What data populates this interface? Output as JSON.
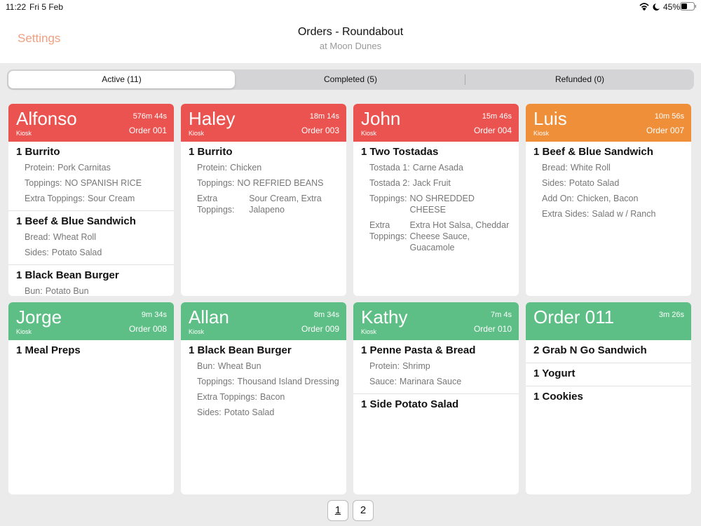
{
  "status_bar": {
    "time": "11:22",
    "date": "Fri 5 Feb",
    "battery": "45%"
  },
  "header": {
    "settings": "Settings",
    "title": "Orders - Roundabout",
    "subtitle": "at Moon Dunes"
  },
  "tabs": [
    "Active (11)",
    "Completed (5)",
    "Refunded (0)"
  ],
  "orders": [
    {
      "name": "Alfonso",
      "time": "576m 44s",
      "source": "Kiosk",
      "order_no": "Order 001",
      "color": "#eb5350",
      "items": [
        {
          "title": "1 Burrito",
          "options": [
            {
              "label": "Protein:",
              "value": "Pork Carnitas"
            },
            {
              "label": "Toppings:",
              "value": "NO SPANISH RICE"
            },
            {
              "label": "Extra Toppings:",
              "value": "Sour Cream"
            }
          ]
        },
        {
          "title": "1 Beef & Blue Sandwich",
          "options": [
            {
              "label": "Bread:",
              "value": "Wheat Roll"
            },
            {
              "label": "Sides:",
              "value": "Potato Salad"
            }
          ]
        },
        {
          "title": "1 Black Bean Burger",
          "options": [
            {
              "label": "Bun:",
              "value": "Potato Bun"
            }
          ]
        }
      ]
    },
    {
      "name": "Haley",
      "time": "18m 14s",
      "source": "Kiosk",
      "order_no": "Order 003",
      "color": "#eb5350",
      "items": [
        {
          "title": "1 Burrito",
          "options": [
            {
              "label": "Protein:",
              "value": "Chicken"
            },
            {
              "label": "Toppings:",
              "value": "NO REFRIED BEANS"
            },
            {
              "label": "Extra Toppings:",
              "value": "Sour Cream, Extra Jalapeno"
            }
          ]
        }
      ]
    },
    {
      "name": "John",
      "time": "15m 46s",
      "source": "Kiosk",
      "order_no": "Order 004",
      "color": "#eb5350",
      "items": [
        {
          "title": "1 Two Tostadas",
          "options": [
            {
              "label": "Tostada 1:",
              "value": "Carne Asada"
            },
            {
              "label": "Tostada 2:",
              "value": "Jack Fruit"
            },
            {
              "label": "Toppings:",
              "value": "NO SHREDDED CHEESE"
            },
            {
              "label": "Extra Toppings:",
              "value": "Extra Hot Salsa, Cheddar Cheese Sauce, Guacamole"
            }
          ]
        }
      ]
    },
    {
      "name": "Luis",
      "time": "10m 56s",
      "source": "Kiosk",
      "order_no": "Order 007",
      "color": "#ef8f3a",
      "items": [
        {
          "title": "1 Beef & Blue Sandwich",
          "options": [
            {
              "label": "Bread:",
              "value": "White Roll"
            },
            {
              "label": "Sides:",
              "value": "Potato Salad"
            },
            {
              "label": "Add On:",
              "value": "Chicken, Bacon"
            },
            {
              "label": "Extra Sides:",
              "value": "Salad w / Ranch"
            }
          ]
        }
      ]
    },
    {
      "name": "Jorge",
      "time": "9m 34s",
      "source": "Kiosk",
      "order_no": "Order 008",
      "color": "#5dbf85",
      "items": [
        {
          "title": "1 Meal Preps",
          "options": []
        }
      ]
    },
    {
      "name": "Allan",
      "time": "8m 34s",
      "source": "Kiosk",
      "order_no": "Order 009",
      "color": "#5dbf85",
      "items": [
        {
          "title": "1 Black Bean Burger",
          "options": [
            {
              "label": "Bun:",
              "value": "Wheat Bun"
            },
            {
              "label": "Toppings:",
              "value": "Thousand Island Dressing"
            },
            {
              "label": "Extra Toppings:",
              "value": "Bacon"
            },
            {
              "label": "Sides:",
              "value": "Potato Salad"
            }
          ]
        }
      ]
    },
    {
      "name": "Kathy",
      "time": "7m 4s",
      "source": "Kiosk",
      "order_no": "Order 010",
      "color": "#5dbf85",
      "items": [
        {
          "title": "1 Penne Pasta & Bread",
          "options": [
            {
              "label": "Protein:",
              "value": "Shrimp"
            },
            {
              "label": "Sauce:",
              "value": "Marinara Sauce"
            }
          ]
        },
        {
          "title": "1 Side Potato Salad",
          "options": []
        }
      ]
    },
    {
      "name": "Order 011",
      "time": "3m 26s",
      "color": "#5dbf85",
      "items": [
        {
          "title": "2 Grab N Go Sandwich",
          "options": []
        },
        {
          "title": "1 Yogurt",
          "options": []
        },
        {
          "title": "1 Cookies",
          "options": []
        }
      ]
    }
  ],
  "pagination": [
    "1",
    "2"
  ]
}
